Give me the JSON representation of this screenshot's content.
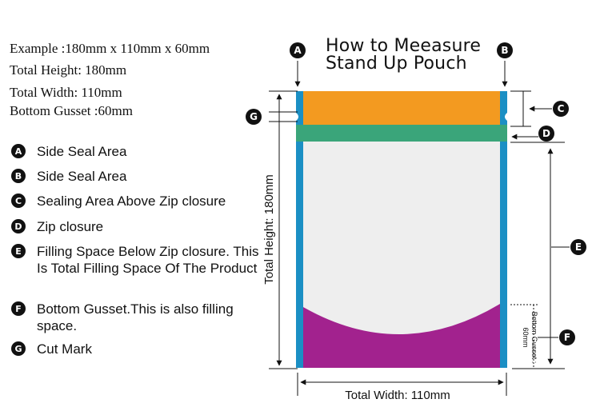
{
  "title": {
    "line1": "How to Meeasure",
    "line2": "Stand Up Pouch"
  },
  "specs": [
    "Example :180mm x 110mm x 60mm",
    "Total Height: 180mm",
    "Total Width: 110mm",
    "Bottom Gusset :60mm"
  ],
  "legend": [
    {
      "key": "A",
      "text": "Side Seal Area"
    },
    {
      "key": "B",
      "text": "Side Seal Area"
    },
    {
      "key": "C",
      "text": "Sealing Area Above Zip closure"
    },
    {
      "key": "D",
      "text": "Zip closure"
    },
    {
      "key": "E",
      "text": "Filling Space Below Zip closure. This Is Total Filling Space Of The Product"
    },
    {
      "key": "F",
      "text": "Bottom Gusset.This is also filling space."
    },
    {
      "key": "G",
      "text": "Cut Mark"
    }
  ],
  "dimensions": {
    "total_height": "Total Height: 180mm",
    "total_width": "Total Width: 110mm",
    "gusset_line1": "Bottom Gusset :",
    "gusset_line2": "60mm"
  },
  "colors": {
    "side_seal": "#1b8fc4",
    "top_seal": "#f39a20",
    "zip": "#3aa57a",
    "body": "#eeeeee",
    "gusset": "#a2228e"
  }
}
